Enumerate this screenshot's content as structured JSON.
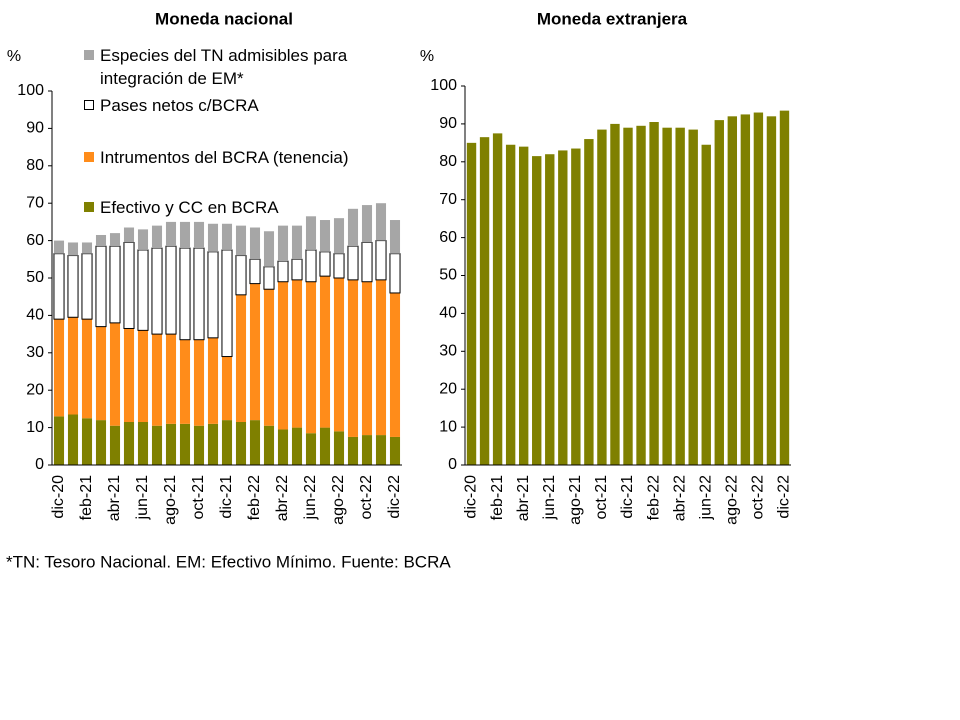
{
  "chart_data": [
    {
      "type": "stacked_bar",
      "title": "Moneda nacional",
      "y_unit": "%",
      "categories": [
        "dic-20",
        null,
        "feb-21",
        null,
        "abr-21",
        null,
        "jun-21",
        null,
        "ago-21",
        null,
        "oct-21",
        null,
        "dic-21",
        null,
        "feb-22",
        null,
        "abr-22",
        null,
        "jun-22",
        null,
        "ago-22",
        null,
        "oct-22",
        null,
        "dic-22"
      ],
      "ylim": [
        0,
        100
      ],
      "yticks": [
        0,
        10,
        20,
        30,
        40,
        50,
        60,
        70,
        80,
        90,
        100
      ],
      "series": [
        {
          "name": "Efectivo y CC en BCRA",
          "color": "#7f8000",
          "values": [
            13,
            13.5,
            12.5,
            12,
            10.5,
            11.5,
            11.5,
            10.5,
            11,
            11,
            10.5,
            11,
            12,
            11.5,
            12,
            10.5,
            9.5,
            10,
            8.5,
            10,
            9,
            7.5,
            8,
            8,
            7.5
          ]
        },
        {
          "name": "Intrumentos del BCRA (tenencia)",
          "color": "#ff8c1a",
          "values": [
            26,
            26,
            26.5,
            25,
            27.5,
            25,
            24.5,
            24.5,
            24,
            22.5,
            23,
            23,
            17,
            34,
            36.5,
            36.5,
            39.5,
            39.5,
            40.5,
            40.5,
            41,
            42,
            41,
            41.5,
            38.5
          ]
        },
        {
          "name": "Pases netos c/BCRA",
          "color": "#ffffff",
          "values": [
            17.5,
            16.5,
            17.5,
            21.5,
            20.5,
            23,
            21.5,
            23,
            23.5,
            24.5,
            24.5,
            23,
            28.5,
            10.5,
            6.5,
            6,
            5.5,
            5.5,
            8.5,
            6.5,
            6.5,
            9,
            10.5,
            10.5,
            10.5
          ]
        },
        {
          "name": "Especies del TN admisibles para integración de EM*",
          "color": "#a6a6a6",
          "values": [
            3.5,
            3.5,
            3,
            3,
            3.5,
            4,
            5.5,
            6,
            6.5,
            7,
            7,
            7.5,
            7,
            8,
            8.5,
            9.5,
            9.5,
            9,
            9,
            8.5,
            9.5,
            10,
            10,
            10,
            9
          ]
        }
      ]
    },
    {
      "type": "bar",
      "title": "Moneda extranjera",
      "y_unit": "%",
      "color": "#7f8000",
      "categories": [
        "dic-20",
        null,
        "feb-21",
        null,
        "abr-21",
        null,
        "jun-21",
        null,
        "ago-21",
        null,
        "oct-21",
        null,
        "dic-21",
        null,
        "feb-22",
        null,
        "abr-22",
        null,
        "jun-22",
        null,
        "ago-22",
        null,
        "oct-22",
        null,
        "dic-22"
      ],
      "ylim": [
        0,
        100
      ],
      "yticks": [
        0,
        10,
        20,
        30,
        40,
        50,
        60,
        70,
        80,
        90,
        100
      ],
      "values": [
        85,
        86.5,
        87.5,
        84.5,
        84,
        81.5,
        82,
        83,
        83.5,
        86,
        88.5,
        90,
        89,
        89.5,
        90.5,
        89,
        89,
        88.5,
        84.5,
        91,
        92,
        92.5,
        93,
        92,
        93.5
      ]
    }
  ],
  "footnote": "*TN: Tesoro Nacional. EM: Efectivo Mínimo. Fuente: BCRA"
}
